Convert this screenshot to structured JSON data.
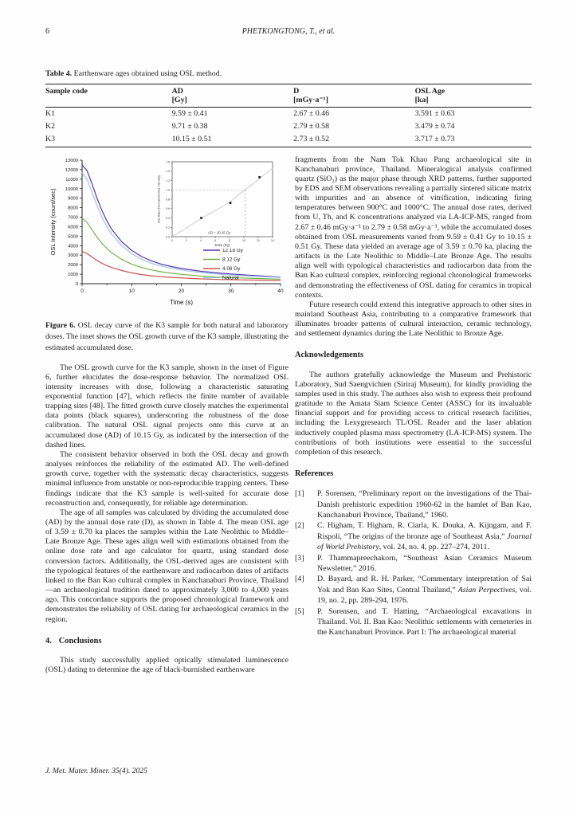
{
  "page": {
    "number": "6",
    "running_title": "PHETKONGTONG, T., et al.",
    "footer": "J. Met. Mater. Miner. 35(4). 2025"
  },
  "table": {
    "caption_label": "Table 4.",
    "caption_text": " Earthenware ages obtained using OSL method.",
    "columns": [
      {
        "name": "Sample code",
        "unit": ""
      },
      {
        "name": "AD",
        "unit": "[Gy]"
      },
      {
        "name": "D",
        "unit": "[mGy·a⁻¹]"
      },
      {
        "name": "OSL Age",
        "unit": "[ka]"
      }
    ],
    "rows": [
      [
        "K1",
        "9.59 ± 0.41",
        "2.67 ± 0.46",
        "3.591 ± 0.63"
      ],
      [
        "K2",
        "9.71 ± 0.38",
        "2.79 ± 0.58",
        "3.479 ± 0.74"
      ],
      [
        "K3",
        "10.15 ± 0.51",
        "2.73 ± 0.52",
        "3.717 ± 0.73"
      ]
    ]
  },
  "figure_caption": {
    "label": "Figure 6.",
    "text": " OSL decay curve of the K3 sample for both natural and laboratory doses. The inset shows the OSL growth curve of the K3 sample, illustrating the estimated accumulated dose."
  },
  "chart_data": [
    {
      "type": "line",
      "title": "",
      "xlabel": "Time (s)",
      "ylabel": "OSL Intensity (count/sec)",
      "xlim": [
        0,
        40
      ],
      "ylim": [
        0,
        13000
      ],
      "x_ticks": [
        0,
        10,
        20,
        30,
        40
      ],
      "y_tick_step": 1000,
      "grid": false,
      "legend_position": "right-middle",
      "x": [
        0,
        1,
        2,
        3,
        4,
        5,
        6,
        8,
        10,
        12,
        14,
        16,
        18,
        20,
        24,
        28,
        32,
        36,
        40
      ],
      "series": [
        {
          "name": "12.18 Gy",
          "color": "#5633ad",
          "values": [
            12500,
            11900,
            10500,
            9000,
            7700,
            6600,
            5700,
            4400,
            3500,
            2850,
            2400,
            2050,
            1800,
            1600,
            1300,
            1100,
            950,
            820,
            700
          ]
        },
        {
          "name": "8.12 Gy",
          "color": "#76b24a",
          "values": [
            6900,
            6450,
            5650,
            4900,
            4250,
            3700,
            3250,
            2550,
            2050,
            1700,
            1450,
            1250,
            1100,
            980,
            800,
            680,
            600,
            540,
            480
          ]
        },
        {
          "name": "4.06 Gy",
          "color": "#c8524e",
          "values": [
            3400,
            3180,
            2800,
            2450,
            2150,
            1900,
            1700,
            1380,
            1140,
            960,
            830,
            730,
            660,
            600,
            500,
            440,
            400,
            370,
            340
          ]
        },
        {
          "name": "Natural",
          "color": "#9cc3e8",
          "values": [
            11700,
            11000,
            9600,
            8200,
            7000,
            6000,
            5200,
            4000,
            3150,
            2550,
            2150,
            1850,
            1620,
            1440,
            1160,
            980,
            850,
            750,
            660
          ]
        }
      ]
    },
    {
      "type": "scatter",
      "title": "",
      "xlabel": "Dose (Gy)",
      "ylabel": "OSL Ratio (Normalized OSL Intensity)",
      "xlim": [
        0,
        14
      ],
      "ylim": [
        0,
        1.6
      ],
      "x_tick_step": 2,
      "y_tick_step": 0.2,
      "points": {
        "x": [
          4.06,
          8.12,
          12.18
        ],
        "y": [
          0.4,
          0.72,
          1.27
        ]
      },
      "fit_line": {
        "color": "#d8caca",
        "x": [
          0,
          2,
          4,
          6,
          8,
          10.15,
          12,
          14
        ],
        "y": [
          0,
          0.185,
          0.385,
          0.56,
          0.735,
          1.0,
          1.22,
          1.46
        ]
      },
      "dashed_guides": {
        "y": 1.0,
        "x": 10.15
      },
      "annotation": "AD = 10.15 Gy"
    }
  ],
  "left_column": {
    "paragraphs": [
      "The OSL growth curve for the K3 sample, shown in the inset of Figure 6, further elucidates the dose-response behavior. The normalized OSL intensity increases with dose, following a characteristic saturating exponential function [47], which reflects the finite number of available trapping sites [48]. The fitted growth curve closely matches the experimental data points (black squares), underscoring the robustness of the dose calibration. The natural OSL signal projects onto this curve at an accumulated dose (AD) of 10.15 Gy, as indicated by the intersection of the dashed lines.",
      "The consistent behavior observed in both the OSL decay and growth analyses reinforces the reliability of the estimated AD. The well-defined growth curve, together with the systematic decay characteristics, suggests minimal influence from unstable or non-reproducible trapping centers. These findings indicate that the K3 sample is well-suited for accurate dose reconstruction and, consequently, for reliable age determination.",
      "The age of all samples was calculated by dividing the accumulated dose (AD) by the annual dose rate (D), as shown in Table 4. The mean OSL age of 3.59 ± 0.70 ka places the samples within the Late Neolithic to Middle–Late Bronze Age. These ages align well with estimations obtained from the online dose rate and age calculator for quartz, using standard dose conversion factors. Additionally, the OSL-derived ages are consistent with the typological features of the earthenware and radiocarbon dates of artifacts linked to the Ban Kao cultural complex in Kanchanaburi Province, Thailand—an archaeological tradition dated to approximately 3,000 to 4,000 years ago. This concordance supports the proposed chronological framework and demonstrates the reliability of OSL dating for archaeological ceramics in the region."
    ],
    "conclusions_heading": {
      "number": "4.",
      "title": "Conclusions"
    },
    "conclusions_paragraph": "This study successfully applied optically stimulated luminescence (OSL) dating to determine the age of black-burnished earthenware"
  },
  "right_column": {
    "continuation_paragraph": "fragments from the Nam Tok Khao Pang archaeological site in Kanchanaburi province, Thailand. Mineralogical analysis confirmed quartz (SiO₂) as the major phase through XRD patterns, further supported by EDS and SEM observations revealing a partially sintered silicate matrix with impurities and an absence of vitrification, indicating firing temperatures between 900°C and 1000°C. The annual dose rates, derived from U, Th, and K concentrations analyzed via LA-ICP-MS, ranged from 2.67 ± 0.46 mGy·a⁻¹ to 2.79 ± 0.58 mGy·a⁻¹, while the accumulated doses obtained from OSL measurements varied from 9.59 ± 0.41 Gy to 10.15 ± 0.51 Gy. These data yielded an average age of 3.59 ± 0.70 ka, placing the artifacts in the Late Neolithic to Middle–Late Bronze Age. The results align well with typological characteristics and radiocarbon data from the Ban Kao cultural complex, reinforcing regional chronological frameworks and demonstrating the effectiveness of OSL dating for ceramics in tropical contexts.",
    "future_paragraph": "Future research could extend this integrative approach to other sites in mainland Southeast Asia, contributing to a comparative framework that illuminates broader patterns of cultural interaction, ceramic technology, and settlement dynamics during the Late Neolithic to Bronze Age.",
    "acknowledgements_heading": "Acknowledgements",
    "acknowledgements_paragraph": "The authors gratefully acknowledge the Museum and Prehistoric Laboratory, Sud Saengvichien (Siriraj Museum), for kindly providing the samples used in this study. The authors also wish to express their profound gratitude to the Amata Siam Science Center (ASSC) for its invaluable financial support and for providing access to critical research facilities, including the Lexygresearch TL/OSL Reader and the laser ablation inductively coupled plasma mass spectrometry (LA-ICP-MS) system. The contributions of both institutions were essential to the successful completion of this research.",
    "references_heading": "References",
    "references": [
      {
        "label": "[1]",
        "parts": [
          {
            "t": "P. Sorensen, “Preliminary report on the investigations of the Thai- Danish prehistoric expedition 1960-62 in the hamlet of Ban Kao, Kanchanaburi Province, Thailand,” 1960.",
            "i": false
          }
        ]
      },
      {
        "label": "[2]",
        "parts": [
          {
            "t": "C. Higham, T. Higham, R. Ciarla, K. Douka, A. Kijngam, and F. Rispoli, “The origins of the bronze age of Southeast Asia,” ",
            "i": false
          },
          {
            "t": "Journal of World Prehistory",
            "i": true
          },
          {
            "t": ", vol. 24, no. 4, pp. 227–274, 2011.",
            "i": false
          }
        ]
      },
      {
        "label": "[3]",
        "parts": [
          {
            "t": "P. Thammapreechakorn, “Southeast Asian Ceramics Museum Newsletter,” 2016.",
            "i": false
          }
        ]
      },
      {
        "label": "[4]",
        "parts": [
          {
            "t": "D. Bayard, and R. H. Parker, “Commentary interpretation of Sai Yok and Ban Kao Sites, Central Thailand,” ",
            "i": false
          },
          {
            "t": "Asian Perpectives",
            "i": true
          },
          {
            "t": ", vol. 19, no. 2, pp. 289-294, 1976.",
            "i": false
          }
        ]
      },
      {
        "label": "[5]",
        "parts": [
          {
            "t": "P. Sorensen, and T. Hatting, “Archaeological excavations in Thailand. Vol. II. Ban Kao: Neolithic settlements with cemeteries in the Kanchanaburi Province. Part I: The archaeological material",
            "i": false
          }
        ]
      }
    ]
  }
}
